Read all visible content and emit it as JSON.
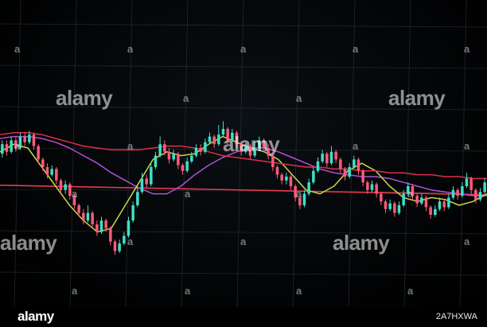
{
  "chart_data": {
    "type": "candlestick",
    "title": "",
    "xlabel": "",
    "ylabel": "",
    "grid": true,
    "colors": {
      "up": "#3de0c8",
      "down": "#ff5a7a",
      "ma_long": "#b24fd4",
      "ma_short": "#c9d64a",
      "ma_slow": "#d9304a",
      "horizontal_line": "#e83a4e",
      "grid": "#3a4048",
      "background": "#000000"
    },
    "candles": [
      {
        "o": 57,
        "c": 62,
        "h": 64,
        "l": 55
      },
      {
        "o": 62,
        "c": 58,
        "h": 64,
        "l": 56
      },
      {
        "o": 58,
        "c": 64,
        "h": 66,
        "l": 57
      },
      {
        "o": 64,
        "c": 60,
        "h": 66,
        "l": 58
      },
      {
        "o": 60,
        "c": 66,
        "h": 68,
        "l": 59
      },
      {
        "o": 66,
        "c": 63,
        "h": 68,
        "l": 61
      },
      {
        "o": 63,
        "c": 67,
        "h": 69,
        "l": 62
      },
      {
        "o": 67,
        "c": 61,
        "h": 68,
        "l": 59
      },
      {
        "o": 61,
        "c": 54,
        "h": 62,
        "l": 52
      },
      {
        "o": 54,
        "c": 50,
        "h": 55,
        "l": 48
      },
      {
        "o": 50,
        "c": 46,
        "h": 52,
        "l": 44
      },
      {
        "o": 46,
        "c": 49,
        "h": 51,
        "l": 45
      },
      {
        "o": 49,
        "c": 43,
        "h": 50,
        "l": 41
      },
      {
        "o": 43,
        "c": 38,
        "h": 44,
        "l": 36
      },
      {
        "o": 38,
        "c": 41,
        "h": 43,
        "l": 36
      },
      {
        "o": 41,
        "c": 35,
        "h": 42,
        "l": 33
      },
      {
        "o": 35,
        "c": 30,
        "h": 36,
        "l": 28
      },
      {
        "o": 30,
        "c": 26,
        "h": 31,
        "l": 24
      },
      {
        "o": 26,
        "c": 22,
        "h": 28,
        "l": 20
      },
      {
        "o": 22,
        "c": 26,
        "h": 30,
        "l": 21
      },
      {
        "o": 26,
        "c": 20,
        "h": 27,
        "l": 18
      },
      {
        "o": 20,
        "c": 16,
        "h": 22,
        "l": 14
      },
      {
        "o": 16,
        "c": 22,
        "h": 24,
        "l": 15
      },
      {
        "o": 22,
        "c": 18,
        "h": 23,
        "l": 16
      },
      {
        "o": 18,
        "c": 11,
        "h": 19,
        "l": 9
      },
      {
        "o": 11,
        "c": 6,
        "h": 12,
        "l": 4
      },
      {
        "o": 6,
        "c": 10,
        "h": 12,
        "l": 5
      },
      {
        "o": 10,
        "c": 14,
        "h": 16,
        "l": 9
      },
      {
        "o": 14,
        "c": 22,
        "h": 24,
        "l": 13
      },
      {
        "o": 22,
        "c": 30,
        "h": 32,
        "l": 21
      },
      {
        "o": 30,
        "c": 37,
        "h": 40,
        "l": 29
      },
      {
        "o": 37,
        "c": 44,
        "h": 47,
        "l": 36
      },
      {
        "o": 44,
        "c": 41,
        "h": 46,
        "l": 39
      },
      {
        "o": 41,
        "c": 50,
        "h": 52,
        "l": 40
      },
      {
        "o": 50,
        "c": 56,
        "h": 58,
        "l": 49
      },
      {
        "o": 56,
        "c": 62,
        "h": 66,
        "l": 55
      },
      {
        "o": 62,
        "c": 58,
        "h": 64,
        "l": 56
      },
      {
        "o": 58,
        "c": 54,
        "h": 60,
        "l": 52
      },
      {
        "o": 54,
        "c": 57,
        "h": 59,
        "l": 53
      },
      {
        "o": 57,
        "c": 51,
        "h": 58,
        "l": 49
      },
      {
        "o": 51,
        "c": 48,
        "h": 52,
        "l": 46
      },
      {
        "o": 48,
        "c": 53,
        "h": 55,
        "l": 47
      },
      {
        "o": 53,
        "c": 56,
        "h": 58,
        "l": 52
      },
      {
        "o": 56,
        "c": 60,
        "h": 62,
        "l": 55
      },
      {
        "o": 60,
        "c": 58,
        "h": 62,
        "l": 56
      },
      {
        "o": 58,
        "c": 63,
        "h": 65,
        "l": 57
      },
      {
        "o": 63,
        "c": 66,
        "h": 68,
        "l": 62
      },
      {
        "o": 66,
        "c": 62,
        "h": 67,
        "l": 60
      },
      {
        "o": 62,
        "c": 67,
        "h": 72,
        "l": 61
      },
      {
        "o": 67,
        "c": 70,
        "h": 74,
        "l": 66
      },
      {
        "o": 70,
        "c": 64,
        "h": 71,
        "l": 62
      },
      {
        "o": 64,
        "c": 68,
        "h": 70,
        "l": 63
      },
      {
        "o": 68,
        "c": 62,
        "h": 69,
        "l": 60
      },
      {
        "o": 62,
        "c": 58,
        "h": 63,
        "l": 56
      },
      {
        "o": 58,
        "c": 61,
        "h": 63,
        "l": 57
      },
      {
        "o": 61,
        "c": 56,
        "h": 62,
        "l": 54
      },
      {
        "o": 56,
        "c": 60,
        "h": 64,
        "l": 55
      },
      {
        "o": 60,
        "c": 64,
        "h": 66,
        "l": 59
      },
      {
        "o": 64,
        "c": 60,
        "h": 65,
        "l": 58
      },
      {
        "o": 60,
        "c": 56,
        "h": 62,
        "l": 54
      },
      {
        "o": 56,
        "c": 50,
        "h": 57,
        "l": 48
      },
      {
        "o": 50,
        "c": 46,
        "h": 51,
        "l": 44
      },
      {
        "o": 46,
        "c": 43,
        "h": 47,
        "l": 41
      },
      {
        "o": 43,
        "c": 45,
        "h": 47,
        "l": 41
      },
      {
        "o": 45,
        "c": 40,
        "h": 46,
        "l": 38
      },
      {
        "o": 40,
        "c": 34,
        "h": 41,
        "l": 32
      },
      {
        "o": 34,
        "c": 30,
        "h": 35,
        "l": 28
      },
      {
        "o": 30,
        "c": 36,
        "h": 38,
        "l": 29
      },
      {
        "o": 36,
        "c": 42,
        "h": 44,
        "l": 35
      },
      {
        "o": 42,
        "c": 48,
        "h": 50,
        "l": 41
      },
      {
        "o": 48,
        "c": 53,
        "h": 55,
        "l": 47
      },
      {
        "o": 53,
        "c": 57,
        "h": 59,
        "l": 52
      },
      {
        "o": 57,
        "c": 52,
        "h": 58,
        "l": 50
      },
      {
        "o": 52,
        "c": 58,
        "h": 61,
        "l": 51
      },
      {
        "o": 58,
        "c": 54,
        "h": 59,
        "l": 52
      },
      {
        "o": 54,
        "c": 49,
        "h": 55,
        "l": 47
      },
      {
        "o": 49,
        "c": 45,
        "h": 50,
        "l": 43
      },
      {
        "o": 45,
        "c": 50,
        "h": 52,
        "l": 44
      },
      {
        "o": 50,
        "c": 54,
        "h": 56,
        "l": 49
      },
      {
        "o": 54,
        "c": 48,
        "h": 55,
        "l": 46
      },
      {
        "o": 48,
        "c": 42,
        "h": 49,
        "l": 40
      },
      {
        "o": 42,
        "c": 38,
        "h": 43,
        "l": 36
      },
      {
        "o": 38,
        "c": 41,
        "h": 43,
        "l": 37
      },
      {
        "o": 41,
        "c": 36,
        "h": 42,
        "l": 34
      },
      {
        "o": 36,
        "c": 32,
        "h": 37,
        "l": 30
      },
      {
        "o": 32,
        "c": 28,
        "h": 33,
        "l": 26
      },
      {
        "o": 28,
        "c": 31,
        "h": 33,
        "l": 27
      },
      {
        "o": 31,
        "c": 26,
        "h": 32,
        "l": 24
      },
      {
        "o": 26,
        "c": 30,
        "h": 32,
        "l": 25
      },
      {
        "o": 30,
        "c": 36,
        "h": 38,
        "l": 29
      },
      {
        "o": 36,
        "c": 40,
        "h": 42,
        "l": 35
      },
      {
        "o": 40,
        "c": 35,
        "h": 41,
        "l": 33
      },
      {
        "o": 35,
        "c": 31,
        "h": 36,
        "l": 29
      },
      {
        "o": 31,
        "c": 34,
        "h": 36,
        "l": 30
      },
      {
        "o": 34,
        "c": 29,
        "h": 35,
        "l": 27
      },
      {
        "o": 29,
        "c": 25,
        "h": 30,
        "l": 23
      },
      {
        "o": 25,
        "c": 28,
        "h": 30,
        "l": 24
      },
      {
        "o": 28,
        "c": 32,
        "h": 34,
        "l": 27
      },
      {
        "o": 32,
        "c": 29,
        "h": 33,
        "l": 27
      },
      {
        "o": 29,
        "c": 34,
        "h": 36,
        "l": 28
      },
      {
        "o": 34,
        "c": 38,
        "h": 40,
        "l": 33
      },
      {
        "o": 38,
        "c": 35,
        "h": 39,
        "l": 33
      },
      {
        "o": 35,
        "c": 40,
        "h": 42,
        "l": 34
      },
      {
        "o": 40,
        "c": 44,
        "h": 47,
        "l": 39
      },
      {
        "o": 44,
        "c": 38,
        "h": 45,
        "l": 36
      },
      {
        "o": 38,
        "c": 33,
        "h": 39,
        "l": 31
      },
      {
        "o": 33,
        "c": 37,
        "h": 39,
        "l": 32
      },
      {
        "o": 37,
        "c": 42,
        "h": 44,
        "l": 36
      }
    ],
    "moving_averages": [
      {
        "name": "",
        "color": "#b24fd4",
        "values": [
          65,
          66,
          66,
          65,
          63,
          60,
          56,
          52,
          47,
          43,
          39,
          36,
          36,
          40,
          46,
          51,
          55,
          58,
          60,
          60,
          58,
          55,
          52,
          49,
          47,
          46,
          45,
          45,
          44,
          42,
          40,
          38,
          37,
          36,
          35,
          35
        ]
      },
      {
        "name": "",
        "color": "#c9d64a",
        "values": [
          58,
          62,
          60,
          50,
          40,
          30,
          22,
          16,
          18,
          30,
          42,
          54,
          58,
          56,
          57,
          62,
          66,
          63,
          60,
          58,
          54,
          46,
          38,
          36,
          40,
          48,
          52,
          48,
          40,
          34,
          32,
          34,
          33,
          30,
          32,
          36
        ]
      },
      {
        "name": "",
        "color": "#d9304a",
        "values": [
          67,
          68,
          68,
          67,
          65,
          63,
          61,
          60,
          59,
          59,
          59,
          60,
          61,
          61,
          60,
          58,
          56,
          55,
          54,
          53,
          52,
          51,
          50,
          50,
          49,
          49,
          48,
          48,
          47,
          47,
          46,
          46,
          45,
          45,
          44,
          44
        ]
      }
    ],
    "horizontal_line": {
      "value": 38
    },
    "ylim": [
      0,
      100
    ]
  },
  "watermarks": {
    "brand": "alamy",
    "small_letter": "a"
  },
  "footer": {
    "logo": "alamy",
    "image_id": "2A7HXWA"
  }
}
